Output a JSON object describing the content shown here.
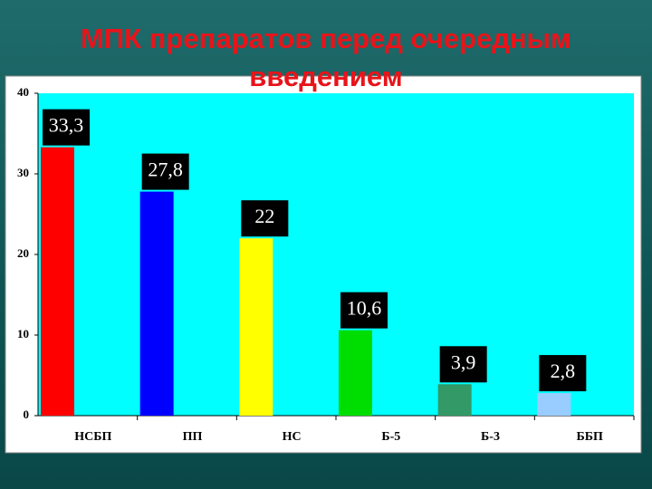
{
  "chart_data": {
    "type": "bar",
    "title": "МПК препаратов перед очередным введением",
    "categories": [
      "НСБП",
      "ПП",
      "НС",
      "Б-5",
      "Б-3",
      "ББП"
    ],
    "values": [
      33.3,
      27.8,
      22,
      10.6,
      3.9,
      2.8
    ],
    "value_labels": [
      "33,3",
      "27,8",
      "22",
      "10,6",
      "3,9",
      "2,8"
    ],
    "colors": [
      "#ff0000",
      "#0000ff",
      "#ffff00",
      "#00dd00",
      "#339966",
      "#99ccff"
    ],
    "ylim": [
      0,
      40
    ],
    "yticks": [
      0,
      10,
      20,
      30,
      40
    ],
    "grid": false
  }
}
